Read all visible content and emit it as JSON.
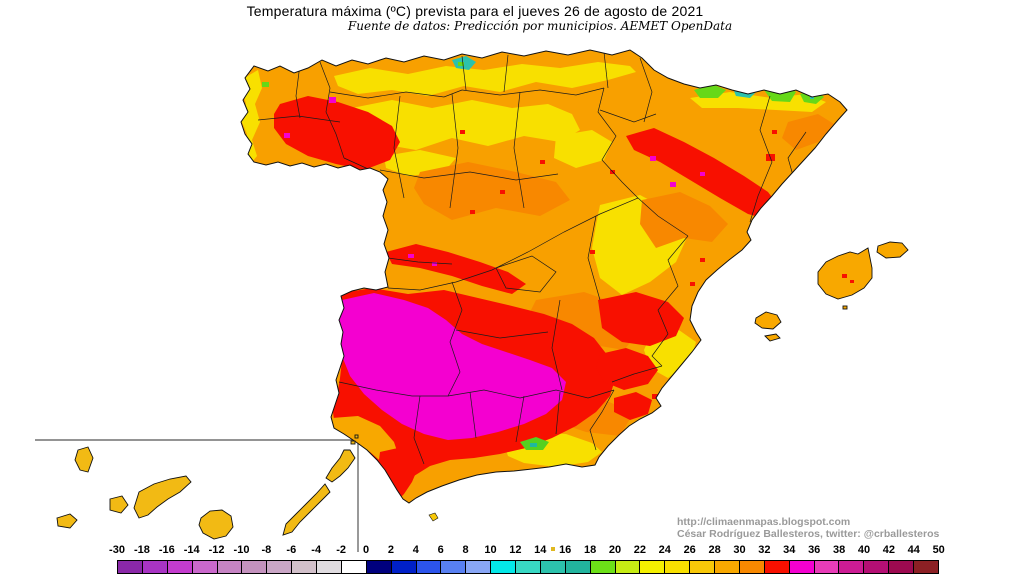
{
  "title": "Temperatura máxima (ºC) prevista para el jueves 26 de agosto de 2021",
  "subtitle": "Fuente de datos: Predicción por municipios. AEMET OpenData",
  "attribution": {
    "line1": "http://climaenmapas.blogspot.com",
    "line2": "César Rodríguez Ballesteros, twitter: @crballesteros"
  },
  "legend": {
    "unit": "ºC",
    "tick_labels": [
      "-30",
      "-18",
      "-16",
      "-14",
      "-12",
      "-10",
      "-8",
      "-6",
      "-4",
      "-2",
      "0",
      "2",
      "4",
      "6",
      "8",
      "10",
      "12",
      "14",
      "16",
      "18",
      "20",
      "22",
      "24",
      "26",
      "28",
      "30",
      "32",
      "34",
      "36",
      "38",
      "40",
      "42",
      "44",
      "50"
    ],
    "segment_colors": [
      "#8A28A8",
      "#A834C4",
      "#C43CCE",
      "#CA68CC",
      "#C684C4",
      "#C492BE",
      "#CAA6C6",
      "#D2C0CA",
      "#E0DCE0",
      "#FFFFFF",
      "#00007E",
      "#0020C8",
      "#2C54EC",
      "#5880F2",
      "#88A6F6",
      "#04E8E8",
      "#38D8C4",
      "#2CC2AC",
      "#22B49E",
      "#6CE018",
      "#C6EC14",
      "#F4F000",
      "#F8E000",
      "#F8C808",
      "#F8A800",
      "#F88800",
      "#F81000",
      "#F400D0",
      "#E83CB8",
      "#CC1C94",
      "#B40F74",
      "#9C0A50",
      "#8C2024"
    ]
  },
  "map": {
    "base_orange": "#F8A000",
    "deep_orange": "#F88800",
    "yellow": "#F8E000",
    "amber": "#F8C808",
    "red": "#F81000",
    "magenta": "#F400D0",
    "green": "#66D818",
    "teal": "#2CC2AC",
    "cyan": "#04E8E8",
    "border_color": "#1b1b1b"
  }
}
